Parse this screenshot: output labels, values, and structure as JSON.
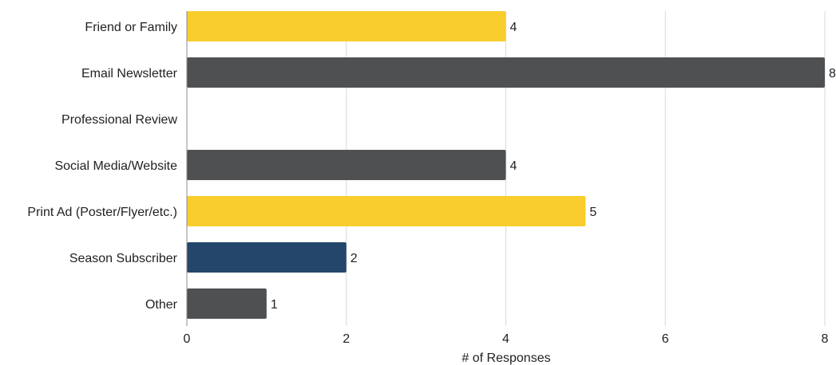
{
  "chart_data": {
    "type": "bar",
    "orientation": "horizontal",
    "categories": [
      "Friend or Family",
      "Email Newsletter",
      "Professional Review",
      "Social Media/Website",
      "Print Ad (Poster/Flyer/etc.)",
      "Season Subscriber",
      "Other"
    ],
    "values": [
      4,
      8,
      0,
      4,
      5,
      2,
      1
    ],
    "value_labels": [
      "4",
      "8",
      "",
      "4",
      "5",
      "2",
      "1"
    ],
    "bar_colors": [
      "#f9cd2b",
      "#4f5052",
      "#4f5052",
      "#4f5052",
      "#f9cd2b",
      "#24466b",
      "#4f5052"
    ],
    "title": "",
    "xlabel": "# of Responses",
    "ylabel": "",
    "xlim": [
      0,
      8
    ],
    "xticks": [
      0,
      2,
      4,
      6,
      8
    ],
    "xtick_labels": [
      "0",
      "2",
      "4",
      "6",
      "8"
    ],
    "grid": true,
    "legend": "none"
  }
}
